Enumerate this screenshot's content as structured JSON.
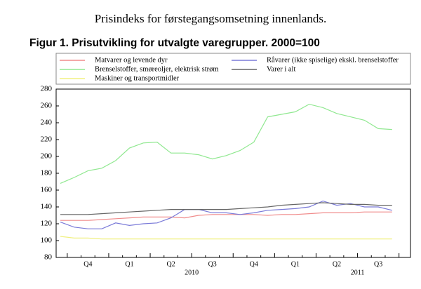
{
  "page_title": "Prisindeks for førstegangsomsetning innenlands.",
  "chart_data": {
    "type": "line",
    "title": "Figur 1. Prisutvikling for utvalgte varegrupper. 2000=100",
    "categories": [
      null,
      null,
      "Q4",
      null,
      null,
      "Q1",
      null,
      null,
      "Q2",
      null,
      null,
      "Q3",
      null,
      null,
      "Q4",
      null,
      null,
      "Q1",
      null,
      null,
      "Q2",
      null,
      null,
      "Q3",
      null
    ],
    "years": [
      "2010",
      "2011"
    ],
    "ylim": [
      80,
      280
    ],
    "yticks": [
      80,
      100,
      120,
      140,
      160,
      180,
      200,
      220,
      240,
      260,
      280
    ],
    "grid": false,
    "series": [
      {
        "name": "Matvarer og levende dyr",
        "color": "#f08c8c",
        "values": [
          124,
          124,
          124,
          125,
          126,
          127,
          128,
          128,
          128,
          127,
          130,
          131,
          131,
          131,
          131,
          130,
          131,
          131,
          132,
          133,
          133,
          133,
          134,
          134,
          134
        ]
      },
      {
        "name": "Råvarer (ikke spiselige) ekskl. brenselstoffer",
        "color": "#7a7ad8",
        "values": [
          122,
          116,
          114,
          114,
          121,
          118,
          120,
          121,
          127,
          137,
          137,
          133,
          133,
          131,
          133,
          136,
          137,
          138,
          140,
          147,
          142,
          144,
          140,
          140,
          136
        ]
      },
      {
        "name": "Brenselstoffer, smøreoljer, elektrisk strøm",
        "color": "#90e890",
        "values": [
          168,
          175,
          183,
          186,
          195,
          210,
          216,
          217,
          204,
          204,
          202,
          197,
          201,
          207,
          217,
          247,
          250,
          253,
          262,
          258,
          251,
          247,
          243,
          233,
          232
        ]
      },
      {
        "name": "Varer i alt",
        "color": "#666666",
        "values": [
          131,
          131,
          131,
          132,
          133,
          134,
          135,
          136,
          137,
          137,
          137,
          137,
          137,
          138,
          139,
          140,
          142,
          143,
          144,
          145,
          144,
          143,
          143,
          142,
          142
        ]
      },
      {
        "name": "Maskiner og transportmidler",
        "color": "#f0f080",
        "values": [
          105,
          103,
          103,
          102,
          102,
          102,
          102,
          102,
          102,
          102,
          102,
          102,
          102,
          102,
          102,
          102,
          102,
          102,
          102,
          102,
          102,
          102,
          102,
          102,
          102
        ]
      }
    ]
  }
}
